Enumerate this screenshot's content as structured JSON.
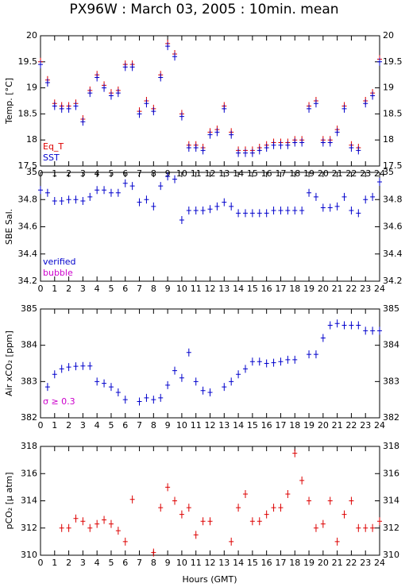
{
  "chart_data": [
    {
      "type": "scatter",
      "title": "PX96W : March 03, 2005 : 10min. mean",
      "ylabel": "Temp. [°C]",
      "x": [
        0,
        0.5,
        1,
        1.5,
        2,
        2.5,
        3,
        3.5,
        4,
        4.5,
        5,
        5.5,
        6,
        6.5,
        7,
        7.5,
        8,
        8.5,
        9,
        9.5,
        10,
        10.5,
        11,
        11.5,
        12,
        12.5,
        13,
        13.5,
        14,
        14.5,
        15,
        15.5,
        16,
        16.5,
        17,
        17.5,
        18,
        18.5,
        19,
        19.5,
        20,
        20.5,
        21,
        21.5,
        22,
        22.5,
        23,
        23.5,
        24
      ],
      "series": [
        {
          "name": "Eq_T",
          "color": "#dd0000",
          "values": [
            19.5,
            19.15,
            18.7,
            18.65,
            18.65,
            18.7,
            18.4,
            18.95,
            19.25,
            19.05,
            18.9,
            18.95,
            19.45,
            19.45,
            18.55,
            18.75,
            18.6,
            19.25,
            19.85,
            19.65,
            18.5,
            17.9,
            17.9,
            17.85,
            18.15,
            18.2,
            18.65,
            18.15,
            17.8,
            17.8,
            17.8,
            17.85,
            17.9,
            17.95,
            17.95,
            17.95,
            18.0,
            18.0,
            18.65,
            18.75,
            18.0,
            18.0,
            18.2,
            18.65,
            17.9,
            17.85,
            18.75,
            18.9,
            19.55
          ]
        },
        {
          "name": "SST",
          "color": "#0000cc",
          "values": [
            19.45,
            19.1,
            18.65,
            18.6,
            18.6,
            18.65,
            18.35,
            18.9,
            19.2,
            19.0,
            18.85,
            18.9,
            19.4,
            19.4,
            18.5,
            18.7,
            18.55,
            19.2,
            19.8,
            19.6,
            18.45,
            17.85,
            17.85,
            17.8,
            18.1,
            18.15,
            18.6,
            18.1,
            17.75,
            17.75,
            17.75,
            17.8,
            17.85,
            17.9,
            17.9,
            17.9,
            17.95,
            17.95,
            18.6,
            18.7,
            17.95,
            17.95,
            18.15,
            18.6,
            17.85,
            17.8,
            18.7,
            18.85,
            19.5
          ]
        }
      ],
      "xlim": [
        0,
        24
      ],
      "xticks": [
        0,
        1,
        2,
        3,
        4,
        5,
        6,
        7,
        8,
        9,
        10,
        11,
        12,
        13,
        14,
        15,
        16,
        17,
        18,
        19,
        20,
        21,
        22,
        23,
        24
      ],
      "ylim": [
        17.5,
        20
      ],
      "yticks": [
        17.5,
        18,
        18.5,
        19,
        19.5,
        20
      ]
    },
    {
      "type": "scatter",
      "ylabel": "SBE Sal.",
      "x": [
        0,
        0.5,
        1,
        1.5,
        2,
        2.5,
        3,
        3.5,
        4,
        4.5,
        5,
        5.5,
        6,
        6.5,
        7,
        7.5,
        8,
        8.5,
        9,
        9.5,
        10,
        10.5,
        11,
        11.5,
        12,
        12.5,
        13,
        13.5,
        14,
        14.5,
        15,
        15.5,
        16,
        16.5,
        17,
        17.5,
        18,
        18.5,
        19,
        19.5,
        20,
        20.5,
        21,
        21.5,
        22,
        22.5,
        23,
        23.5,
        24
      ],
      "series": [
        {
          "name": "verified",
          "color": "#0000cc",
          "values": [
            34.87,
            34.85,
            34.79,
            34.79,
            34.8,
            34.8,
            34.79,
            34.82,
            34.87,
            34.87,
            34.85,
            34.85,
            34.92,
            34.9,
            34.78,
            34.8,
            34.75,
            34.9,
            34.97,
            34.95,
            34.65,
            34.72,
            34.72,
            34.72,
            34.73,
            34.75,
            34.78,
            34.75,
            34.7,
            34.7,
            34.7,
            34.7,
            34.7,
            34.72,
            34.72,
            34.72,
            34.72,
            34.72,
            34.85,
            34.82,
            34.74,
            34.74,
            34.75,
            34.82,
            34.72,
            34.7,
            34.8,
            34.82,
            34.93
          ]
        },
        {
          "name": "bubble",
          "color": "#cc00cc",
          "values": [
            null,
            null,
            null,
            null,
            null,
            null,
            null,
            null,
            null,
            null,
            null,
            null,
            null,
            null,
            null,
            null,
            null,
            null,
            null,
            null,
            null,
            null,
            null,
            null,
            null,
            null,
            null,
            null,
            null,
            null,
            null,
            null,
            null,
            null,
            null,
            null,
            null,
            null,
            null,
            null,
            null,
            null,
            null,
            null,
            null,
            null,
            null,
            null,
            null
          ]
        }
      ],
      "xlim": [
        0,
        24
      ],
      "xticks": [
        0,
        1,
        2,
        3,
        4,
        5,
        6,
        7,
        8,
        9,
        10,
        11,
        12,
        13,
        14,
        15,
        16,
        17,
        18,
        19,
        20,
        21,
        22,
        23,
        24
      ],
      "ylim": [
        34.2,
        35
      ],
      "yticks": [
        34.2,
        34.4,
        34.6,
        34.8,
        35
      ]
    },
    {
      "type": "scatter",
      "ylabel": "Air xCO₂ [ppm]",
      "annotation": "σ ≥ 0.3",
      "annotation_color": "#cc00cc",
      "x": [
        0,
        0.5,
        1,
        1.5,
        2,
        2.5,
        3,
        3.5,
        4,
        4.5,
        5,
        5.5,
        6,
        6.5,
        7,
        7.5,
        8,
        8.5,
        9,
        9.5,
        10,
        10.5,
        11,
        11.5,
        12,
        12.5,
        13,
        13.5,
        14,
        14.5,
        15,
        15.5,
        16,
        16.5,
        17,
        17.5,
        18,
        18.5,
        19,
        19.5,
        20,
        20.5,
        21,
        21.5,
        22,
        22.5,
        23,
        23.5,
        24
      ],
      "color": "#0000cc",
      "values": [
        null,
        382.85,
        383.2,
        383.35,
        383.4,
        383.42,
        383.43,
        383.43,
        383.0,
        382.95,
        382.85,
        382.7,
        382.5,
        null,
        382.45,
        382.55,
        382.5,
        382.55,
        382.9,
        383.3,
        383.1,
        383.8,
        383.0,
        382.75,
        382.7,
        null,
        382.85,
        383.0,
        383.2,
        383.35,
        383.55,
        383.55,
        383.5,
        383.52,
        383.55,
        383.6,
        383.6,
        null,
        383.75,
        383.75,
        384.2,
        384.55,
        384.6,
        384.55,
        384.55,
        384.55,
        384.4,
        384.4,
        384.4
      ],
      "xlim": [
        0,
        24
      ],
      "xticks": [
        0,
        1,
        2,
        3,
        4,
        5,
        6,
        7,
        8,
        9,
        10,
        11,
        12,
        13,
        14,
        15,
        16,
        17,
        18,
        19,
        20,
        21,
        22,
        23,
        24
      ],
      "ylim": [
        382,
        385
      ],
      "yticks": [
        382,
        383,
        384,
        385
      ]
    },
    {
      "type": "scatter",
      "ylabel": "pCO₂ [μ atm]",
      "xlabel": "Hours (GMT)",
      "x": [
        0,
        0.5,
        1,
        1.5,
        2,
        2.5,
        3,
        3.5,
        4,
        4.5,
        5,
        5.5,
        6,
        6.5,
        7,
        7.5,
        8,
        8.5,
        9,
        9.5,
        10,
        10.5,
        11,
        11.5,
        12,
        12.5,
        13,
        13.5,
        14,
        14.5,
        15,
        15.5,
        16,
        16.5,
        17,
        17.5,
        18,
        18.5,
        19,
        19.5,
        20,
        20.5,
        21,
        21.5,
        22,
        22.5,
        23,
        23.5,
        24
      ],
      "color": "#dd0000",
      "values": [
        null,
        null,
        null,
        312,
        312,
        312.7,
        312.5,
        312,
        312.3,
        312.6,
        312.3,
        311.8,
        311,
        314.1,
        null,
        null,
        310.2,
        313.5,
        315,
        314,
        313,
        313.5,
        311.5,
        312.5,
        312.5,
        null,
        null,
        311,
        313.5,
        314.5,
        312.5,
        312.5,
        313,
        313.5,
        313.5,
        314.5,
        317.5,
        315.5,
        314,
        312,
        312.3,
        314,
        311,
        313,
        314,
        312,
        312,
        312,
        312.5
      ],
      "xlim": [
        0,
        24
      ],
      "xticks": [
        0,
        1,
        2,
        3,
        4,
        5,
        6,
        7,
        8,
        9,
        10,
        11,
        12,
        13,
        14,
        15,
        16,
        17,
        18,
        19,
        20,
        21,
        22,
        23,
        24
      ],
      "ylim": [
        310,
        318
      ],
      "yticks": [
        310,
        312,
        314,
        316,
        318
      ]
    }
  ]
}
